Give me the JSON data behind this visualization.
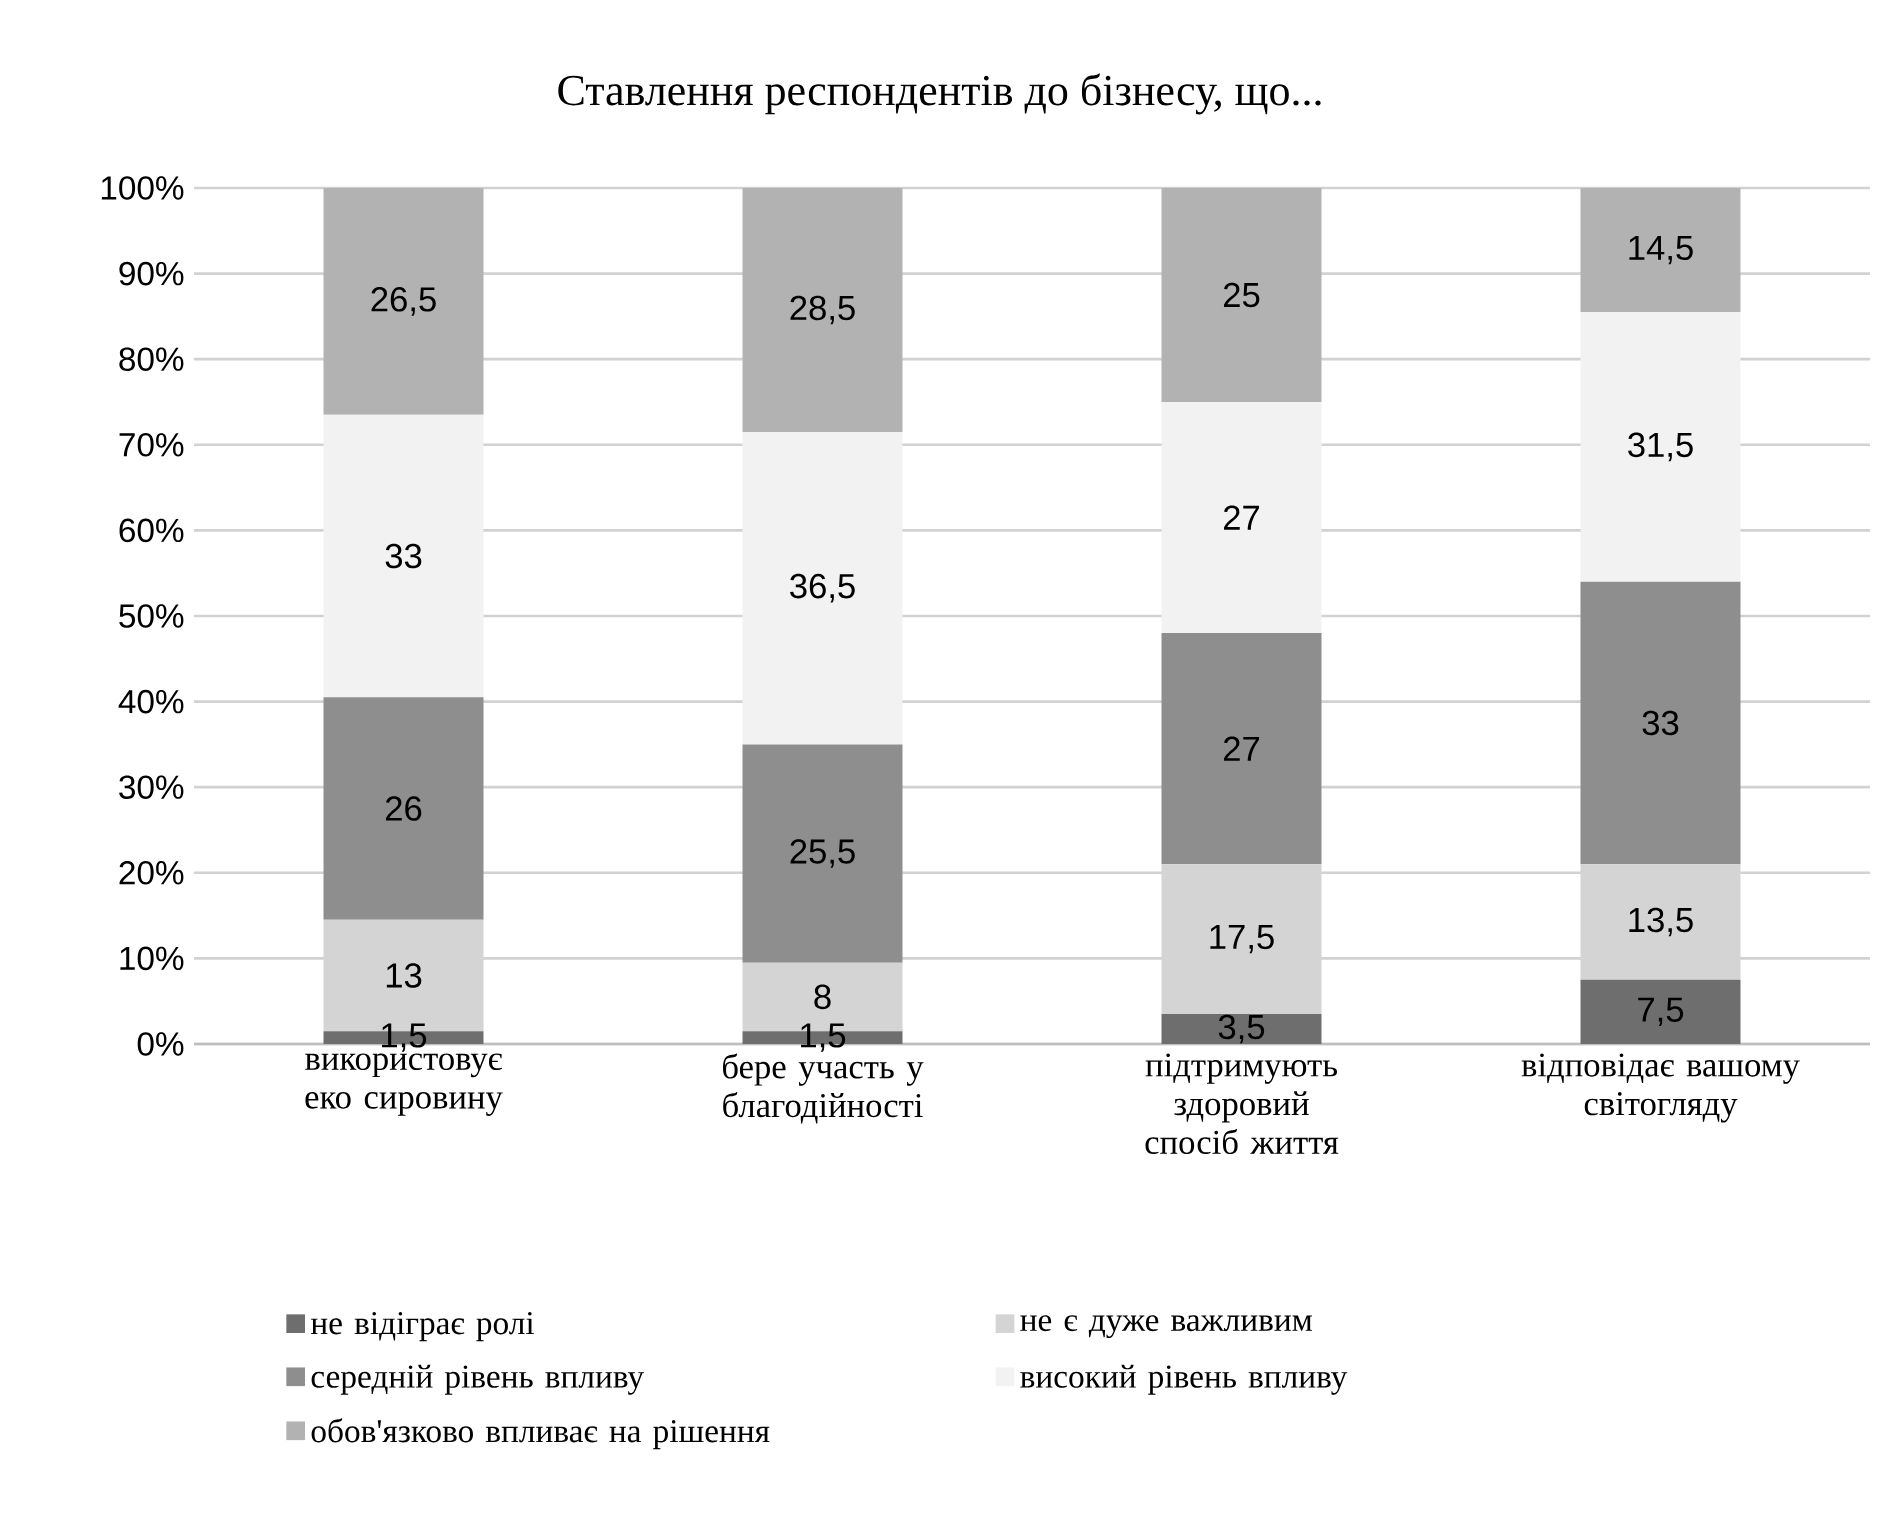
{
  "chart_data": {
    "type": "bar",
    "stacked": true,
    "title": "Ставлення респондентів до бізнесу, що...",
    "categories": [
      "використовує еко сировину",
      "бере участь у благодійності",
      "підтримують здоровий спосіб життя",
      "відповідає вашому світогляду"
    ],
    "series": [
      {
        "name": "не відіграє ролі",
        "color": "#6e6e6e",
        "values": [
          1.5,
          1.5,
          3.5,
          7.5
        ],
        "value_labels": [
          "1,5",
          "1,5",
          "3,5",
          "7,5"
        ]
      },
      {
        "name": "не є дуже важливим",
        "color": "#d4d4d4",
        "values": [
          13,
          8,
          17.5,
          13.5
        ],
        "value_labels": [
          "13",
          "8",
          "17,5",
          "13,5"
        ]
      },
      {
        "name": "середній рівень впливу",
        "color": "#8e8e8e",
        "values": [
          26,
          25.5,
          27,
          33
        ],
        "value_labels": [
          "26",
          "25,5",
          "27",
          "33"
        ]
      },
      {
        "name": "високий рівень впливу",
        "color": "#f2f2f2",
        "values": [
          33,
          36.5,
          27,
          31.5
        ],
        "value_labels": [
          "33",
          "36,5",
          "27",
          "31,5"
        ]
      },
      {
        "name": "обов'язково впливає на рішення",
        "color": "#b2b2b2",
        "values": [
          26.5,
          28.5,
          25,
          14.5
        ],
        "value_labels": [
          "26,5",
          "28,5",
          "25",
          "14,5"
        ]
      }
    ],
    "ylim": [
      0,
      100
    ],
    "yticks": [
      {
        "value": 0,
        "label": "0%"
      },
      {
        "value": 10,
        "label": "10%"
      },
      {
        "value": 20,
        "label": "20%"
      },
      {
        "value": 30,
        "label": "30%"
      },
      {
        "value": 40,
        "label": "40%"
      },
      {
        "value": 50,
        "label": "50%"
      },
      {
        "value": 60,
        "label": "60%"
      },
      {
        "value": 70,
        "label": "70%"
      },
      {
        "value": 80,
        "label": "80%"
      },
      {
        "value": 90,
        "label": "90%"
      },
      {
        "value": 100,
        "label": "100%"
      }
    ],
    "grid": "y",
    "legend": "bottom"
  }
}
